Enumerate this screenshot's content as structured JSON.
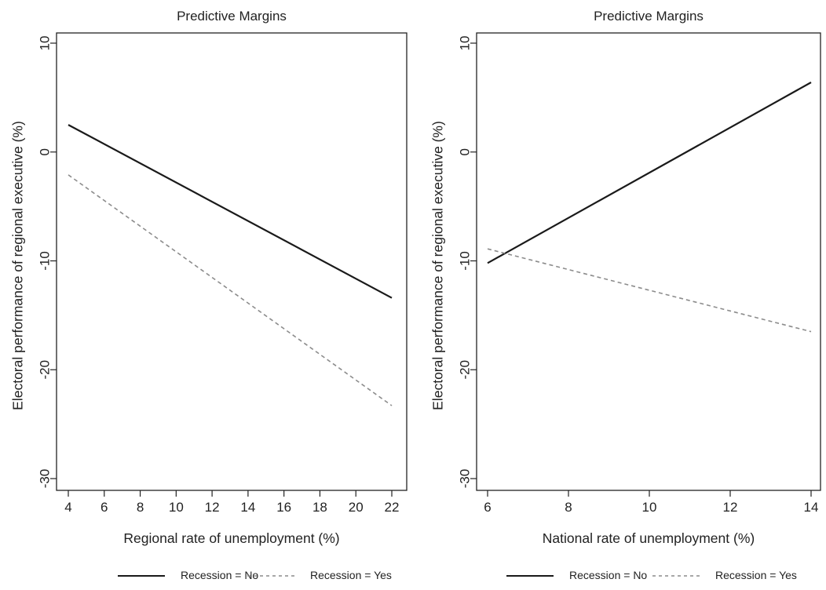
{
  "chart_data": [
    {
      "type": "line",
      "title": "Predictive Margins",
      "xlabel": "Regional rate of unemployment (%)",
      "ylabel": "Electoral performance of regional executive (%)",
      "xlim": [
        4,
        22
      ],
      "ylim": [
        -30,
        10
      ],
      "xticks": [
        "4",
        "6",
        "8",
        "10",
        "12",
        "14",
        "16",
        "18",
        "20",
        "22"
      ],
      "yticks": [
        "10",
        "0",
        "-10",
        "-20",
        "-30"
      ],
      "grid": false,
      "legend_position": "bottom",
      "series": [
        {
          "name": "Recession = No",
          "style": "solid",
          "color": "#1a1a1a",
          "x": [
            4,
            22
          ],
          "y": [
            2.5,
            -13.4
          ]
        },
        {
          "name": "Recession = Yes",
          "style": "dashed",
          "color": "#8c8c8c",
          "x": [
            4,
            22
          ],
          "y": [
            -2.1,
            -23.3
          ]
        }
      ]
    },
    {
      "type": "line",
      "title": "Predictive Margins",
      "xlabel": "National rate of unemployment (%)",
      "ylabel": "Electoral performance of regional executive (%)",
      "xlim": [
        6,
        14
      ],
      "ylim": [
        -30,
        10
      ],
      "xticks": [
        "6",
        "8",
        "10",
        "12",
        "14"
      ],
      "yticks": [
        "10",
        "0",
        "-10",
        "-20",
        "-30"
      ],
      "grid": false,
      "legend_position": "bottom",
      "series": [
        {
          "name": "Recession = No",
          "style": "solid",
          "color": "#1a1a1a",
          "x": [
            6,
            14
          ],
          "y": [
            -10.2,
            6.4
          ]
        },
        {
          "name": "Recession = Yes",
          "style": "dashed",
          "color": "#8c8c8c",
          "x": [
            6,
            14
          ],
          "y": [
            -8.9,
            -16.5
          ]
        }
      ]
    }
  ]
}
